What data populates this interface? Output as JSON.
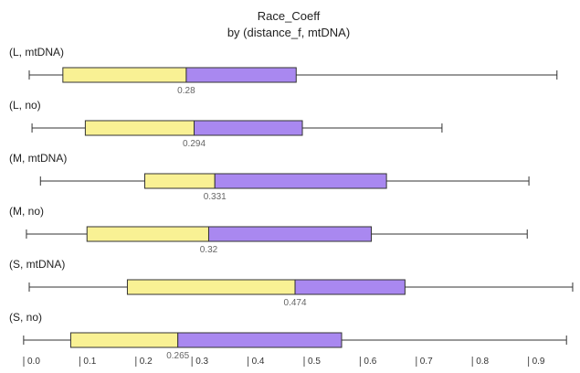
{
  "chart_data": {
    "type": "boxplot",
    "title": "Race_Coeff",
    "subtitle": "by (distance_f, mtDNA)",
    "orientation": "horizontal",
    "xlim": [
      -0.01,
      0.97
    ],
    "x_ticks": [
      0.0,
      0.1,
      0.2,
      0.3,
      0.4,
      0.5,
      0.6,
      0.7,
      0.8,
      0.9
    ],
    "x_tick_labels": [
      "0.0",
      "0.1",
      "0.2",
      "0.3",
      "0.4",
      "0.5",
      "0.6",
      "0.7",
      "0.8",
      "0.9"
    ],
    "colors": {
      "lower_box": "#f9f194",
      "upper_box": "#a988f0",
      "whisker": "#333333",
      "median_label": "#666666"
    },
    "groups": [
      {
        "label": "(L, mtDNA)",
        "min": 0.0,
        "q1": 0.06,
        "median": 0.28,
        "q3": 0.476,
        "max": 0.941,
        "median_label": "0.28"
      },
      {
        "label": "(L, no)",
        "min": 0.005,
        "q1": 0.1,
        "median": 0.294,
        "q3": 0.487,
        "max": 0.736,
        "median_label": "0.294"
      },
      {
        "label": "(M, mtDNA)",
        "min": 0.02,
        "q1": 0.206,
        "median": 0.331,
        "q3": 0.637,
        "max": 0.891,
        "median_label": "0.331"
      },
      {
        "label": "(M, no)",
        "min": -0.005,
        "q1": 0.103,
        "median": 0.32,
        "q3": 0.61,
        "max": 0.888,
        "median_label": "0.32"
      },
      {
        "label": "(S, mtDNA)",
        "min": 0.0,
        "q1": 0.175,
        "median": 0.474,
        "q3": 0.67,
        "max": 0.969,
        "median_label": "0.474"
      },
      {
        "label": "(S, no)",
        "min": -0.01,
        "q1": 0.074,
        "median": 0.265,
        "q3": 0.557,
        "max": 0.958,
        "median_label": "0.265"
      }
    ]
  }
}
